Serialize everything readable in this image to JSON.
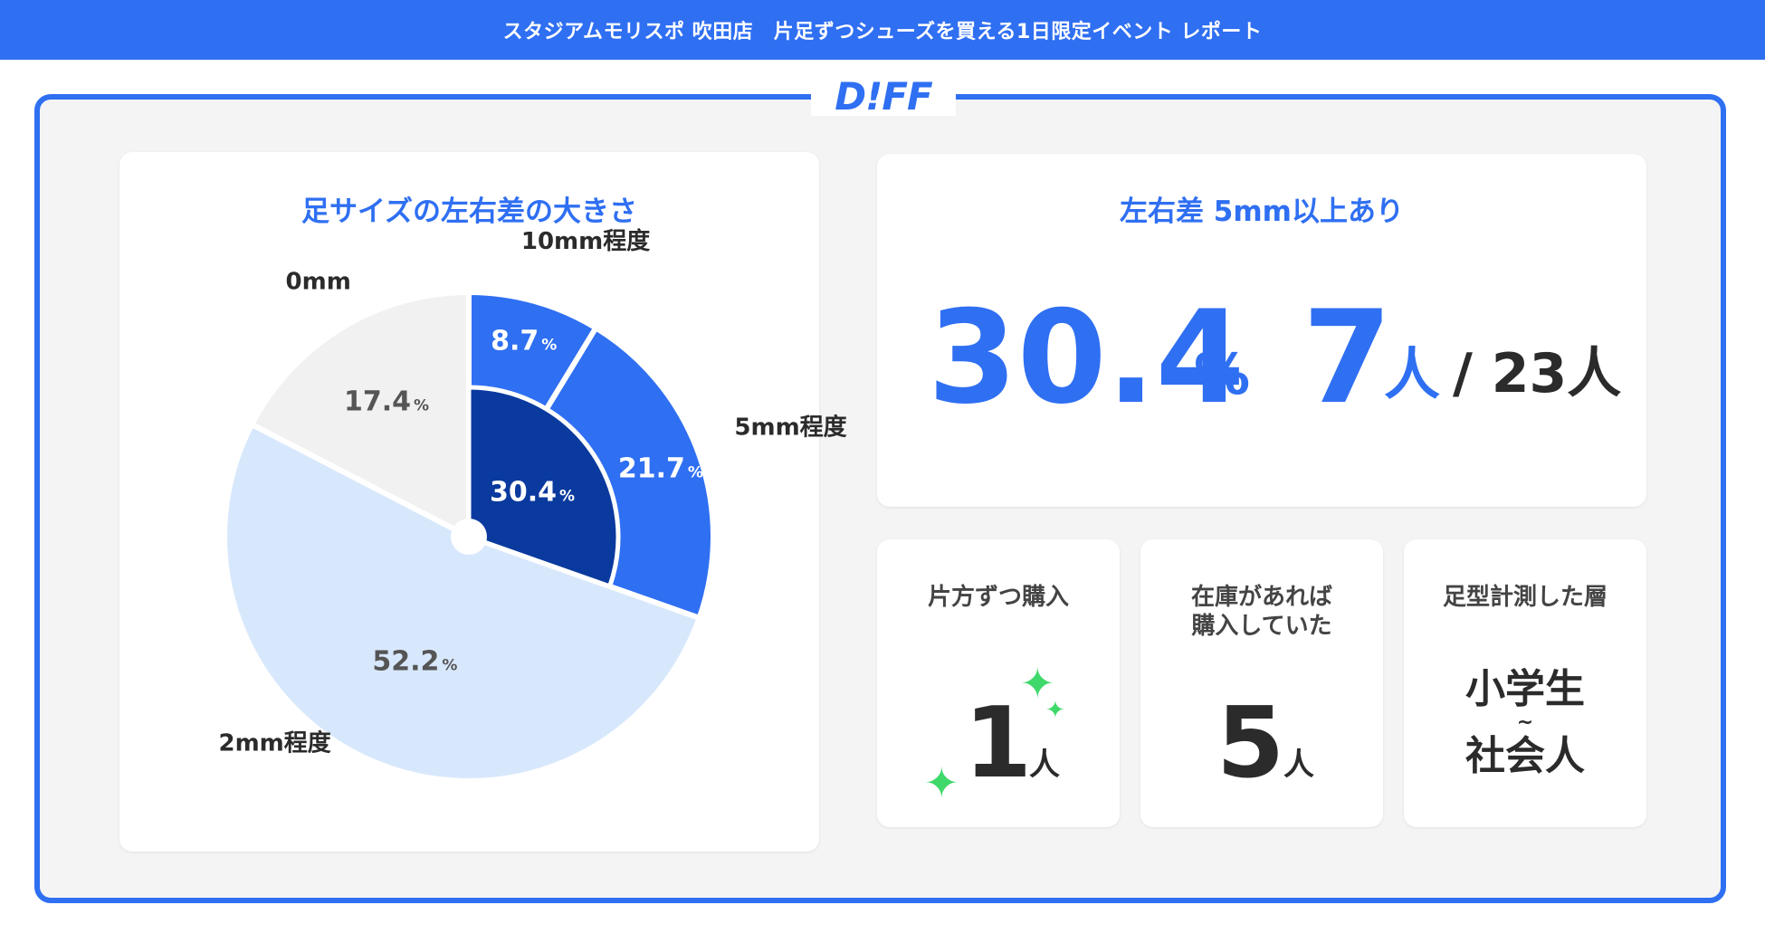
{
  "header": {
    "title": "スタジアムモリスポ 吹田店　片足ずつシューズを買える1日限定イベント レポート"
  },
  "logo": {
    "text": "D!FF"
  },
  "colors": {
    "brand": "#2f6ff2",
    "dark_blue": "#0a3a9e",
    "mid_blue": "#2f6ff2",
    "light_blue": "#d8e8fc",
    "gray": "#f1f1f1"
  },
  "chart_data": {
    "type": "pie",
    "title": "足サイズの左右差の大きさ",
    "slices": [
      {
        "label": "10mm程度",
        "value": 8.7,
        "display": "8.7",
        "color": "#2f6ff2",
        "text_color": "#ffffff"
      },
      {
        "label": "5mm程度",
        "value": 21.7,
        "display": "21.7",
        "color": "#2f6ff2",
        "text_color": "#ffffff"
      },
      {
        "label": "2mm程度",
        "value": 52.2,
        "display": "52.2",
        "color": "#d8e8fc",
        "text_color": "#555555"
      },
      {
        "label": "0mm",
        "value": 17.4,
        "display": "17.4",
        "color": "#f1f1f1",
        "text_color": "#555555"
      }
    ],
    "highlight": {
      "value": 30.4,
      "display": "30.4",
      "color": "#0a3a9e",
      "text_color": "#ffffff"
    },
    "percent_sign": "%"
  },
  "summary": {
    "title": "左右差 5mm以上あり",
    "percent_value": "30.4",
    "percent_unit": "%",
    "count_value": "7",
    "count_unit": "人",
    "total": "/ 23人"
  },
  "stats": [
    {
      "title_lines": [
        "片方ずつ購入"
      ],
      "value": "1",
      "unit": "人"
    },
    {
      "title_lines": [
        "在庫があれば",
        "購入していた"
      ],
      "value": "5",
      "unit": "人"
    },
    {
      "title_lines": [
        "足型計測した層"
      ],
      "value_lines": [
        "小学生",
        "~",
        "社会人"
      ]
    }
  ]
}
